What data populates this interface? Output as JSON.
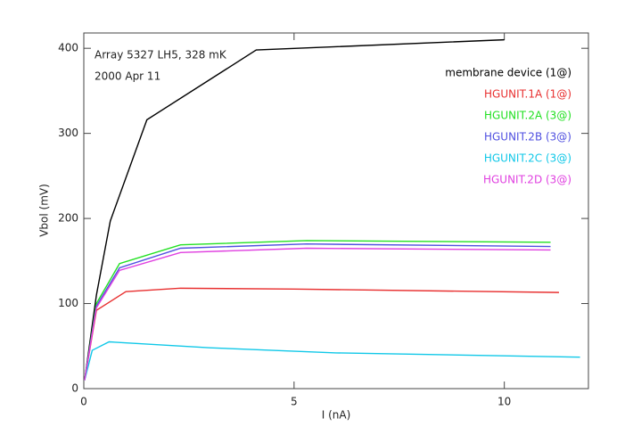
{
  "chart_data": {
    "type": "line",
    "annotations": [
      "Array 5327 LH5, 328 mK",
      "2000 Apr 11"
    ],
    "xlabel": "I (nA)",
    "ylabel": "Vbol (mV)",
    "xlim": [
      0,
      12
    ],
    "ylim": [
      0,
      418
    ],
    "xticks": [
      0,
      5,
      10
    ],
    "yticks": [
      0,
      100,
      200,
      300,
      400
    ],
    "series": [
      {
        "name": "membrane device (1@)",
        "color": "#000000",
        "x": [
          0.02,
          0.3,
          0.63,
          1.5,
          4.1,
          10
        ],
        "values": [
          10,
          110,
          197,
          316,
          398,
          410
        ]
      },
      {
        "name": "HGUNIT.1A (1@)",
        "color": "#e83030",
        "x": [
          0.02,
          0.3,
          1,
          2.3,
          5,
          11.3
        ],
        "values": [
          10,
          92,
          114,
          118,
          117,
          113
        ]
      },
      {
        "name": "HGUNIT.2A (3@)",
        "color": "#22e022",
        "x": [
          0.02,
          0.3,
          0.85,
          2.3,
          5.3,
          11.1
        ],
        "values": [
          10,
          100,
          147,
          169,
          174,
          172
        ]
      },
      {
        "name": "HGUNIT.2B (3@)",
        "color": "#5050e0",
        "x": [
          0.02,
          0.3,
          0.85,
          2.3,
          5.3,
          11.1
        ],
        "values": [
          10,
          97,
          142,
          165,
          170,
          167
        ]
      },
      {
        "name": "HGUNIT.2C (3@)",
        "color": "#10c8e8",
        "x": [
          0.02,
          0.2,
          0.6,
          3,
          6,
          11.8
        ],
        "values": [
          10,
          45,
          55,
          48,
          42,
          37
        ]
      },
      {
        "name": "HGUNIT.2D (3@)",
        "color": "#e040e0",
        "x": [
          0.02,
          0.3,
          0.85,
          2.3,
          5.3,
          11.1
        ],
        "values": [
          10,
          95,
          139,
          160,
          165,
          163
        ]
      }
    ]
  }
}
